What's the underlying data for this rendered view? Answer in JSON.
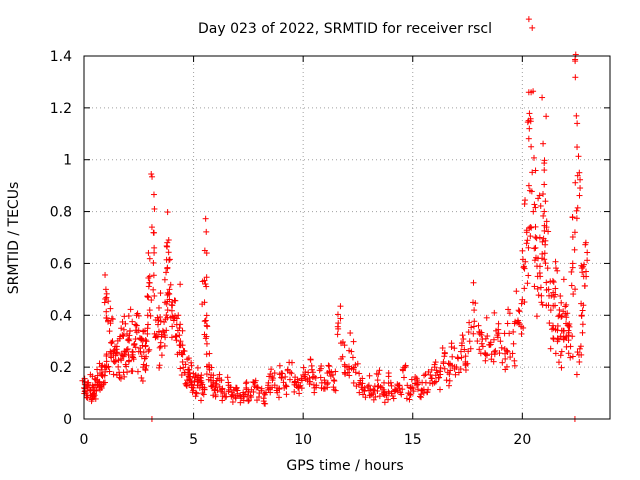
{
  "chart_data": {
    "type": "scatter",
    "title": "Day 023 of 2022, SRMTID for receiver rscl",
    "xlabel": "GPS time / hours",
    "ylabel": "SRMTID / TECUs",
    "xlim": [
      0,
      24
    ],
    "ylim": [
      0,
      1.4
    ],
    "xticks": [
      0,
      5,
      10,
      15,
      20
    ],
    "yticks": [
      0,
      0.2,
      0.4,
      0.6,
      0.8,
      1,
      1.2,
      1.4
    ],
    "xtick_labels": [
      "0",
      "5",
      "10",
      "15",
      "20"
    ],
    "ytick_labels": [
      "0",
      "0.2",
      "0.4",
      "0.6",
      "0.8",
      "1",
      "1.2",
      "1.4"
    ],
    "grid": true,
    "marker": "+",
    "color": "#ff0000",
    "series": [
      {
        "name": "SRMTID",
        "points": [
          [
            0.0,
            0.12
          ],
          [
            0.1,
            0.1
          ],
          [
            0.2,
            0.14
          ],
          [
            0.3,
            0.09
          ],
          [
            0.4,
            0.13
          ],
          [
            0.5,
            0.11
          ],
          [
            0.6,
            0.15
          ],
          [
            0.7,
            0.12
          ],
          [
            0.8,
            0.17
          ],
          [
            0.9,
            0.14
          ],
          [
            1.0,
            0.2
          ],
          [
            1.0,
            0.5
          ],
          [
            1.1,
            0.38
          ],
          [
            1.2,
            0.26
          ],
          [
            1.3,
            0.3
          ],
          [
            1.4,
            0.22
          ],
          [
            1.5,
            0.28
          ],
          [
            1.6,
            0.18
          ],
          [
            1.7,
            0.25
          ],
          [
            1.8,
            0.32
          ],
          [
            1.9,
            0.21
          ],
          [
            2.0,
            0.27
          ],
          [
            2.1,
            0.34
          ],
          [
            2.2,
            0.24
          ],
          [
            2.3,
            0.29
          ],
          [
            2.4,
            0.36
          ],
          [
            2.5,
            0.26
          ],
          [
            2.6,
            0.31
          ],
          [
            2.7,
            0.2
          ],
          [
            2.8,
            0.28
          ],
          [
            2.9,
            0.35
          ],
          [
            3.0,
            0.42
          ],
          [
            3.0,
            0.55
          ],
          [
            3.1,
            0.74
          ],
          [
            3.2,
            0.66
          ],
          [
            3.3,
            0.32
          ],
          [
            3.4,
            0.38
          ],
          [
            3.5,
            0.28
          ],
          [
            3.6,
            0.34
          ],
          [
            3.7,
            0.45
          ],
          [
            3.8,
            0.58
          ],
          [
            3.8,
            0.68
          ],
          [
            3.9,
            0.5
          ],
          [
            4.0,
            0.44
          ],
          [
            4.1,
            0.38
          ],
          [
            4.2,
            0.32
          ],
          [
            4.3,
            0.4
          ],
          [
            4.4,
            0.3
          ],
          [
            4.5,
            0.22
          ],
          [
            4.6,
            0.18
          ],
          [
            4.7,
            0.15
          ],
          [
            4.8,
            0.19
          ],
          [
            4.9,
            0.14
          ],
          [
            5.0,
            0.12
          ],
          [
            5.1,
            0.17
          ],
          [
            5.2,
            0.13
          ],
          [
            5.3,
            0.16
          ],
          [
            5.4,
            0.1
          ],
          [
            5.5,
            0.45
          ],
          [
            5.6,
            0.64
          ],
          [
            5.6,
            0.36
          ],
          [
            5.7,
            0.2
          ],
          [
            5.8,
            0.17
          ],
          [
            5.9,
            0.14
          ],
          [
            6.0,
            0.12
          ],
          [
            6.2,
            0.15
          ],
          [
            6.4,
            0.1
          ],
          [
            6.6,
            0.13
          ],
          [
            6.8,
            0.09
          ],
          [
            7.0,
            0.11
          ],
          [
            7.2,
            0.08
          ],
          [
            7.4,
            0.12
          ],
          [
            7.6,
            0.09
          ],
          [
            7.8,
            0.14
          ],
          [
            8.0,
            0.1
          ],
          [
            8.2,
            0.08
          ],
          [
            8.4,
            0.13
          ],
          [
            8.6,
            0.15
          ],
          [
            8.8,
            0.11
          ],
          [
            9.0,
            0.16
          ],
          [
            9.2,
            0.13
          ],
          [
            9.4,
            0.18
          ],
          [
            9.6,
            0.14
          ],
          [
            9.8,
            0.12
          ],
          [
            10.0,
            0.17
          ],
          [
            10.2,
            0.15
          ],
          [
            10.4,
            0.19
          ],
          [
            10.6,
            0.13
          ],
          [
            10.8,
            0.16
          ],
          [
            11.0,
            0.14
          ],
          [
            11.2,
            0.18
          ],
          [
            11.4,
            0.15
          ],
          [
            11.6,
            0.37
          ],
          [
            11.8,
            0.24
          ],
          [
            12.0,
            0.2
          ],
          [
            12.2,
            0.26
          ],
          [
            12.4,
            0.18
          ],
          [
            12.6,
            0.14
          ],
          [
            12.8,
            0.11
          ],
          [
            13.0,
            0.13
          ],
          [
            13.2,
            0.1
          ],
          [
            13.4,
            0.15
          ],
          [
            13.6,
            0.12
          ],
          [
            13.8,
            0.09
          ],
          [
            14.0,
            0.14
          ],
          [
            14.2,
            0.11
          ],
          [
            14.4,
            0.13
          ],
          [
            14.6,
            0.16
          ],
          [
            14.8,
            0.1
          ],
          [
            15.0,
            0.12
          ],
          [
            15.2,
            0.15
          ],
          [
            15.4,
            0.11
          ],
          [
            15.6,
            0.14
          ],
          [
            15.8,
            0.17
          ],
          [
            16.0,
            0.2
          ],
          [
            16.2,
            0.16
          ],
          [
            16.4,
            0.22
          ],
          [
            16.6,
            0.18
          ],
          [
            16.8,
            0.24
          ],
          [
            17.0,
            0.2
          ],
          [
            17.2,
            0.26
          ],
          [
            17.4,
            0.22
          ],
          [
            17.6,
            0.3
          ],
          [
            17.8,
            0.42
          ],
          [
            18.0,
            0.36
          ],
          [
            18.2,
            0.28
          ],
          [
            18.4,
            0.32
          ],
          [
            18.6,
            0.25
          ],
          [
            18.8,
            0.34
          ],
          [
            19.0,
            0.3
          ],
          [
            19.2,
            0.27
          ],
          [
            19.4,
            0.33
          ],
          [
            19.6,
            0.29
          ],
          [
            19.8,
            0.38
          ],
          [
            20.0,
            0.46
          ],
          [
            20.1,
            0.58
          ],
          [
            20.2,
            0.72
          ],
          [
            20.3,
            0.9
          ],
          [
            20.4,
            1.05
          ],
          [
            20.4,
            1.26
          ],
          [
            20.5,
            0.8
          ],
          [
            20.6,
            0.66
          ],
          [
            20.7,
            0.55
          ],
          [
            20.8,
            0.7
          ],
          [
            20.9,
            0.62
          ],
          [
            21.0,
            0.96
          ],
          [
            21.0,
            0.8
          ],
          [
            21.1,
            0.74
          ],
          [
            21.2,
            0.5
          ],
          [
            21.3,
            0.42
          ],
          [
            21.4,
            0.36
          ],
          [
            21.5,
            0.48
          ],
          [
            21.6,
            0.3
          ],
          [
            21.7,
            0.4
          ],
          [
            21.8,
            0.26
          ],
          [
            21.9,
            0.34
          ],
          [
            22.0,
            0.44
          ],
          [
            22.1,
            0.36
          ],
          [
            22.2,
            0.28
          ],
          [
            22.3,
            0.6
          ],
          [
            22.4,
            0.72
          ],
          [
            22.5,
            1.14
          ],
          [
            22.6,
            0.95
          ],
          [
            22.6,
            0.22
          ],
          [
            22.7,
            0.4
          ],
          [
            22.8,
            0.55
          ],
          [
            22.9,
            0.68
          ]
        ]
      }
    ],
    "outliers_at_zero": [
      [
        3.1,
        0.0
      ],
      [
        22.4,
        0.0
      ]
    ]
  }
}
